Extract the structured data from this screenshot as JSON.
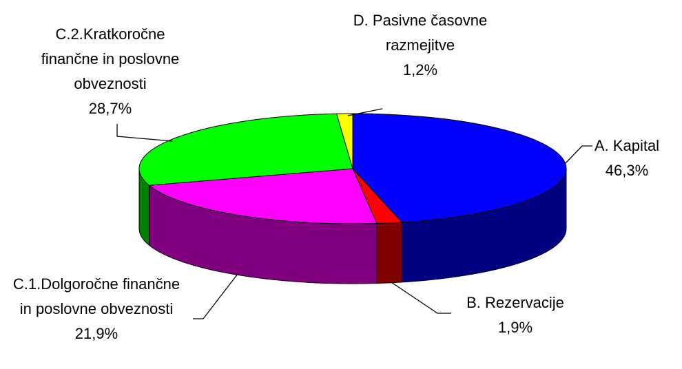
{
  "chart_data": {
    "type": "pie",
    "categories": [
      "A. Kapital",
      "B. Rezervacije",
      "C.1.Dolgoročne finančne in poslovne obveznosti",
      "C.2.Kratkoročne finančne in poslovne obveznosti",
      "D. Pasivne časovne razmejitve"
    ],
    "values": [
      46.3,
      1.9,
      21.9,
      28.7,
      1.2
    ],
    "value_labels": [
      "46,3%",
      "1,9%",
      "21,9%",
      "28,7%",
      "1,2%"
    ],
    "colors": [
      "#0000ff",
      "#ff0000",
      "#ff00ff",
      "#00ff00",
      "#ffff00"
    ],
    "side_colors": [
      "#000080",
      "#800000",
      "#800080",
      "#008000",
      "#808000"
    ]
  }
}
